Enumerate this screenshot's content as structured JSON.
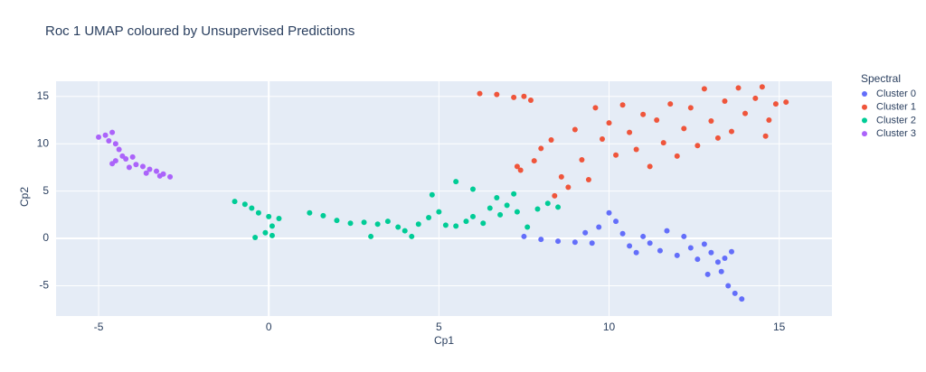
{
  "chart_data": {
    "type": "scatter",
    "title": "Roc 1 UMAP coloured by Unsupervised Predictions",
    "x_label": "Cp1",
    "y_label": "Cp2",
    "legend_title": "Spectral",
    "legend": "right",
    "grid": true,
    "xlim": [
      -6.25,
      16.55
    ],
    "ylim": [
      -8.2,
      16.6
    ],
    "xticks": [
      -5,
      0,
      5,
      10,
      15
    ],
    "yticks": [
      -5,
      0,
      5,
      10,
      15
    ],
    "series": [
      {
        "name": "Cluster 0",
        "color": "#636efa",
        "x": [
          7.5,
          8,
          8.5,
          9,
          9.5,
          9.7,
          10,
          10.2,
          10.4,
          10.6,
          10.8,
          11,
          11.2,
          11.5,
          11.7,
          12,
          12.2,
          12.4,
          12.6,
          12.8,
          13,
          13.2,
          13.3,
          13.4,
          13.5,
          13.7,
          13.9,
          12.9,
          13.6,
          9.3
        ],
        "values": [
          0.2,
          -0.1,
          -0.3,
          -0.4,
          -0.5,
          1.2,
          2.7,
          1.8,
          0.5,
          -0.8,
          -1.5,
          0.2,
          -0.5,
          -1.3,
          0.8,
          -1.8,
          0.2,
          -1,
          -2.2,
          -0.6,
          -1.5,
          -2.5,
          -3.5,
          -2.1,
          -5,
          -5.8,
          -6.4,
          -3.8,
          -1.4,
          0.6
        ]
      },
      {
        "name": "Cluster 1",
        "color": "#ef553b",
        "x": [
          6.2,
          6.7,
          7.2,
          7.5,
          7.7,
          7.3,
          7.8,
          8,
          8.3,
          8.6,
          8.4,
          8.8,
          9,
          9.2,
          9.4,
          9.6,
          9.8,
          10,
          10.2,
          10.4,
          10.6,
          10.8,
          11,
          11.2,
          11.4,
          11.6,
          11.8,
          12,
          12.2,
          12.4,
          12.6,
          12.8,
          13,
          13.2,
          13.4,
          13.6,
          13.8,
          14,
          14.3,
          14.5,
          14.7,
          14.9,
          15.2,
          14.6,
          7.4
        ],
        "values": [
          15.3,
          15.2,
          14.9,
          15,
          14.6,
          7.6,
          8.2,
          9.5,
          10.4,
          6.5,
          4.5,
          5.4,
          11.5,
          8.3,
          6.2,
          13.8,
          10.5,
          12.2,
          8.8,
          14.1,
          11.2,
          9.4,
          13.1,
          7.6,
          12.5,
          10.1,
          14.2,
          8.7,
          11.6,
          13.8,
          9.8,
          15.8,
          12.4,
          10.6,
          14.5,
          11.3,
          15.9,
          13.2,
          14.8,
          16,
          12.5,
          14.2,
          14.4,
          10.8,
          7.2
        ]
      },
      {
        "name": "Cluster 2",
        "color": "#00cc96",
        "x": [
          -1,
          -0.7,
          -0.5,
          -0.3,
          0,
          0.3,
          0.1,
          -0.1,
          -0.4,
          0.1,
          1.2,
          1.6,
          2,
          2.4,
          2.8,
          3.2,
          3.5,
          3.8,
          4,
          4.2,
          4.4,
          4.7,
          5,
          5.2,
          5.5,
          5.8,
          6,
          6.3,
          6.5,
          6.8,
          7,
          7.3,
          7.6,
          7.9,
          8.2,
          8.5,
          5.5,
          6,
          4.8,
          6.7,
          7.2,
          3
        ],
        "values": [
          3.9,
          3.6,
          3.2,
          2.7,
          2.3,
          2.1,
          1.3,
          0.6,
          0.1,
          0.3,
          2.7,
          2.4,
          1.9,
          1.6,
          1.7,
          1.5,
          1.8,
          1.2,
          0.8,
          0.2,
          1.5,
          2.2,
          2.8,
          1.4,
          1.3,
          1.8,
          2.3,
          1.6,
          3.2,
          2.5,
          3.5,
          2.8,
          1.2,
          3.1,
          3.7,
          3.3,
          6,
          5.2,
          4.6,
          4.3,
          4.7,
          0.2
        ]
      },
      {
        "name": "Cluster 3",
        "color": "#ab63fa",
        "x": [
          -5,
          -4.8,
          -4.6,
          -4.7,
          -4.5,
          -4.4,
          -4.3,
          -4.5,
          -4.2,
          -4,
          -3.9,
          -3.7,
          -3.5,
          -3.3,
          -3.1,
          -2.9,
          -4.6,
          -4.1,
          -3.6,
          -3.2
        ],
        "values": [
          10.7,
          10.9,
          11.2,
          10.3,
          10,
          9.4,
          8.7,
          8.2,
          8.4,
          8.6,
          7.8,
          7.6,
          7.3,
          7.1,
          6.8,
          6.5,
          7.9,
          7.5,
          6.9,
          6.6
        ]
      }
    ]
  }
}
